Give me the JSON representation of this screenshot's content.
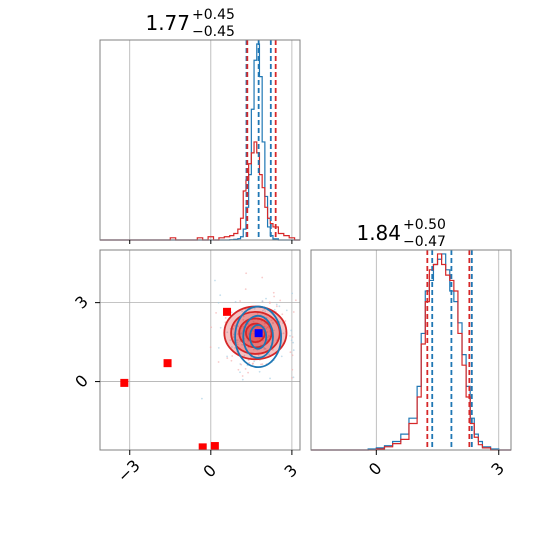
{
  "chart_data": [
    {
      "type": "histogram",
      "panel": "top-left",
      "title": "1.77",
      "title_sup": "+0.45",
      "title_sub": "−0.45",
      "xlim": [
        -4.1,
        3.3
      ],
      "grid": true,
      "series": [
        {
          "color": "#1f77b4",
          "bins": [
            -4.1,
            -3.9,
            -3.7,
            -3.5,
            -3.3,
            -3.1,
            -2.9,
            -2.7,
            -2.5,
            -2.3,
            -2.1,
            -1.9,
            -1.7,
            -1.5,
            -1.3,
            -1.1,
            -0.9,
            -0.7,
            -0.5,
            -0.3,
            -0.1,
            0.1,
            0.3,
            0.5,
            0.7,
            0.85,
            1.0,
            1.1,
            1.2,
            1.3,
            1.4,
            1.5,
            1.6,
            1.7,
            1.8,
            1.9,
            2.0,
            2.1,
            2.2,
            2.3,
            2.5,
            2.7,
            2.9,
            3.1,
            3.3
          ],
          "counts": [
            0,
            0,
            0,
            0,
            0,
            0,
            0,
            0,
            0,
            0,
            0,
            0,
            0,
            0,
            0,
            0,
            0,
            0,
            0,
            0,
            0,
            0,
            0,
            0,
            0.3,
            0.6,
            1.2,
            3,
            10,
            30,
            60,
            120,
            165,
            180,
            150,
            90,
            40,
            12,
            4,
            1,
            0,
            0,
            0,
            0
          ]
        },
        {
          "color": "#d62728",
          "bins": [
            -4.1,
            -3.9,
            -3.7,
            -3.5,
            -3.3,
            -3.1,
            -2.9,
            -2.7,
            -2.5,
            -2.3,
            -2.1,
            -1.9,
            -1.7,
            -1.5,
            -1.3,
            -1.1,
            -0.9,
            -0.7,
            -0.5,
            -0.3,
            -0.1,
            0.1,
            0.3,
            0.5,
            0.7,
            0.85,
            1.0,
            1.1,
            1.2,
            1.3,
            1.4,
            1.5,
            1.6,
            1.7,
            1.8,
            1.9,
            2.0,
            2.1,
            2.2,
            2.3,
            2.5,
            2.7,
            2.9,
            3.1,
            3.3
          ],
          "counts": [
            0,
            0,
            0,
            0,
            0,
            0,
            0,
            0,
            0,
            0,
            0,
            0,
            0,
            2,
            0,
            0,
            0,
            0,
            2,
            0,
            3,
            0,
            2,
            3,
            4,
            6,
            10,
            20,
            45,
            55,
            70,
            80,
            90,
            80,
            60,
            48,
            30,
            20,
            15,
            12,
            6,
            4,
            2,
            0
          ]
        }
      ],
      "vlines": [
        {
          "x": 1.32,
          "color": "#1f77b4"
        },
        {
          "x": 1.77,
          "color": "#1f77b4"
        },
        {
          "x": 2.22,
          "color": "#1f77b4"
        },
        {
          "x": 1.35,
          "color": "#d62728"
        },
        {
          "x": 2.4,
          "color": "#d62728"
        }
      ]
    },
    {
      "type": "histogram",
      "panel": "bottom-right",
      "title": "1.84",
      "title_sup": "+0.50",
      "title_sub": "−0.47",
      "xlim": [
        -1.6,
        3.3
      ],
      "xticks": [
        "0",
        "3"
      ],
      "xtick_values": [
        0,
        3
      ],
      "grid": true,
      "series": [
        {
          "color": "#1f77b4",
          "bins": [
            -1.6,
            -1.2,
            -0.8,
            -0.6,
            -0.4,
            -0.2,
            0.0,
            0.2,
            0.4,
            0.6,
            0.8,
            1.0,
            1.1,
            1.2,
            1.3,
            1.4,
            1.5,
            1.6,
            1.7,
            1.8,
            1.9,
            2.0,
            2.1,
            2.2,
            2.3,
            2.4,
            2.5,
            2.6,
            2.8,
            3.0,
            3.3
          ],
          "counts": [
            0,
            0,
            0,
            0,
            0,
            1,
            2,
            4,
            8,
            15,
            30,
            60,
            110,
            150,
            160,
            175,
            180,
            185,
            170,
            150,
            140,
            120,
            90,
            60,
            30,
            15,
            8,
            3,
            1,
            0
          ]
        },
        {
          "color": "#d62728",
          "bins": [
            -1.6,
            -1.2,
            -0.8,
            -0.6,
            -0.4,
            -0.2,
            0.0,
            0.2,
            0.4,
            0.6,
            0.8,
            1.0,
            1.1,
            1.2,
            1.3,
            1.4,
            1.5,
            1.6,
            1.7,
            1.8,
            1.9,
            2.0,
            2.1,
            2.2,
            2.3,
            2.4,
            2.5,
            2.6,
            2.8,
            3.0,
            3.3
          ],
          "counts": [
            0,
            0,
            0,
            0,
            0,
            0,
            1,
            3,
            6,
            10,
            25,
            50,
            100,
            140,
            170,
            175,
            185,
            175,
            165,
            160,
            150,
            110,
            80,
            50,
            25,
            12,
            5,
            2,
            0,
            0
          ]
        }
      ],
      "vlines": [
        {
          "x": 1.37,
          "color": "#1f77b4"
        },
        {
          "x": 1.84,
          "color": "#1f77b4"
        },
        {
          "x": 2.34,
          "color": "#1f77b4"
        },
        {
          "x": 1.25,
          "color": "#d62728"
        },
        {
          "x": 2.28,
          "color": "#d62728"
        }
      ]
    },
    {
      "type": "scatter",
      "panel": "bottom-left",
      "xlim": [
        -4.1,
        3.3
      ],
      "ylim": [
        -2.6,
        5.0
      ],
      "xticks": [
        "−3",
        "0",
        "3"
      ],
      "xtick_values": [
        -3,
        0,
        3
      ],
      "yticks": [
        "0",
        "3"
      ],
      "ytick_values": [
        0,
        3
      ],
      "grid": true,
      "markers": [
        {
          "x": -3.2,
          "y": -0.05,
          "color": "#ff0000",
          "shape": "square"
        },
        {
          "x": -1.6,
          "y": 0.7,
          "color": "#ff0000",
          "shape": "square"
        },
        {
          "x": -0.3,
          "y": -2.5,
          "color": "#ff0000",
          "shape": "square"
        },
        {
          "x": 0.15,
          "y": -2.45,
          "color": "#ff0000",
          "shape": "square"
        },
        {
          "x": 0.6,
          "y": 2.65,
          "color": "#ff0000",
          "shape": "square"
        },
        {
          "x": 1.77,
          "y": 1.84,
          "color": "#0000ff",
          "shape": "square"
        }
      ],
      "contours": [
        {
          "color": "#d62728",
          "cx": 1.65,
          "cy": 1.85,
          "levels": [
            [
              1.15,
              1.0
            ],
            [
              0.9,
              0.8
            ],
            [
              0.6,
              0.55
            ],
            [
              0.35,
              0.35
            ]
          ],
          "filled": true
        },
        {
          "color": "#1f77b4",
          "cx": 1.75,
          "cy": 1.7,
          "levels": [
            [
              0.85,
              1.15
            ],
            [
              0.55,
              0.8
            ],
            [
              0.3,
              0.45
            ]
          ],
          "filled": false
        }
      ]
    }
  ]
}
